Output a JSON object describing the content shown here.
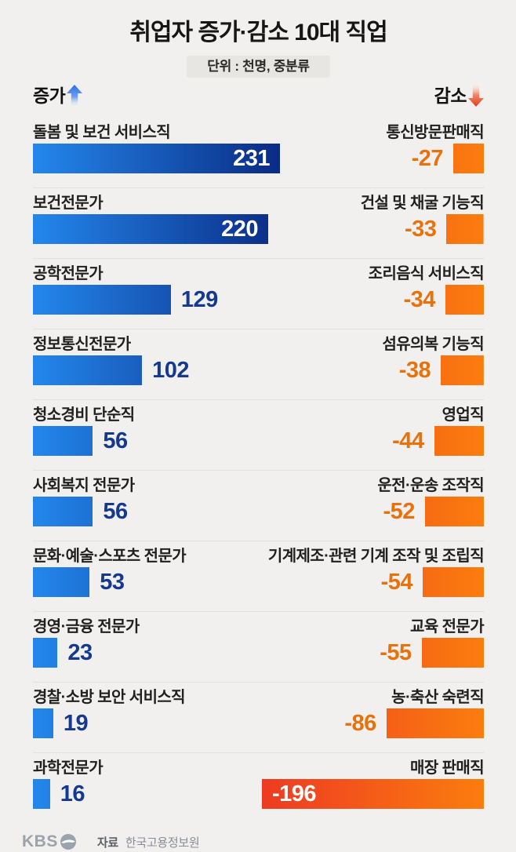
{
  "header": {
    "title": "취업자 증가·감소 10대 직업",
    "subtitle": "단위 : 천명, 중분류"
  },
  "legend": {
    "increase_label": "증가",
    "decrease_label": "감소"
  },
  "footer": {
    "logo_text": "KBS",
    "source_label": "자료",
    "source_value": "한국고용정보원"
  },
  "colors": {
    "background": "#f1f0ee",
    "divider": "#e2e1dd",
    "blue_bar_start": "#2487ec",
    "blue_bar_end": "#0a2b85",
    "blue_value_text": "#14398f",
    "orange_bar_start": "#ee3a22",
    "orange_bar_end": "#fb7d0e",
    "orange_value_text": "#e8710c",
    "inside_value_text": "#ffffff",
    "subtitle_bg": "#e7e6e3",
    "title_text": "#161616"
  },
  "chart_data": {
    "type": "bar",
    "orientation": "horizontal",
    "title": "취업자 증가·감소 10대 직업",
    "unit_note": "단위 : 천명, 중분류",
    "legend_position": "top",
    "grid": false,
    "series": [
      {
        "name": "증가",
        "direction": "increase",
        "items": [
          {
            "label": "돌봄 및 보건 서비스직",
            "value": 231,
            "value_inside_bar": true
          },
          {
            "label": "보건전문가",
            "value": 220,
            "value_inside_bar": true
          },
          {
            "label": "공학전문가",
            "value": 129
          },
          {
            "label": "정보통신전문가",
            "value": 102
          },
          {
            "label": "청소경비 단순직",
            "value": 56
          },
          {
            "label": "사회복지 전문가",
            "value": 56
          },
          {
            "label": "문화·예술·스포츠 전문가",
            "value": 53
          },
          {
            "label": "경영·금융 전문가",
            "value": 23
          },
          {
            "label": "경찰·소방 보안 서비스직",
            "value": 19
          },
          {
            "label": "과학전문가",
            "value": 16
          }
        ]
      },
      {
        "name": "감소",
        "direction": "decrease",
        "items": [
          {
            "label": "통신방문판매직",
            "value": -27
          },
          {
            "label": "건설 및 채굴 기능직",
            "value": -33
          },
          {
            "label": "조리음식 서비스직",
            "value": -34
          },
          {
            "label": "섬유의복 기능직",
            "value": -38
          },
          {
            "label": "영업직",
            "value": -44
          },
          {
            "label": "운전·운송 조작직",
            "value": -52
          },
          {
            "label": "기계제조·관련 기계 조작 및 조립직",
            "value": -54
          },
          {
            "label": "교육 전문가",
            "value": -55
          },
          {
            "label": "농·축산 숙련직",
            "value": -86
          },
          {
            "label": "매장 판매직",
            "value": -196,
            "value_inside_bar": true
          }
        ]
      }
    ]
  }
}
